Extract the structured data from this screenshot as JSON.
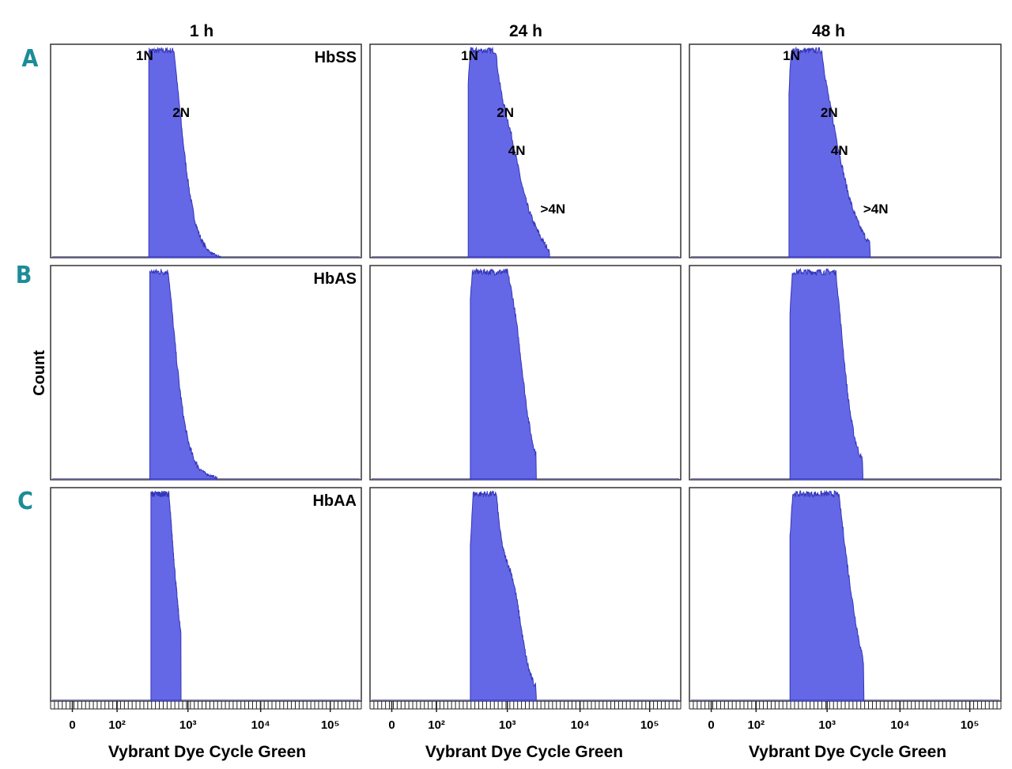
{
  "colors": {
    "fill": "#6467e6",
    "edge": "#3537b8",
    "frame": "#333333",
    "row_label": "#1c8c98"
  },
  "column_titles": [
    "1 h",
    "24 h",
    "48 h"
  ],
  "row_labels": [
    "A",
    "B",
    "C"
  ],
  "genotypes": [
    "HbSS",
    "HbAS",
    "HbAA"
  ],
  "y_axis_label": "Count",
  "x_axis_label": "Vybrant Dye Cycle Green",
  "x_tick_labels": [
    "0",
    "10²",
    "10³",
    "10⁴",
    "10⁵"
  ],
  "chart_data": [
    {
      "type": "area",
      "row": "A",
      "column": "1 h",
      "genotype": "HbSS",
      "x_scale": "logicle",
      "y_range": [
        0,
        1
      ],
      "peak_labels": [
        {
          "text": "1N",
          "x": 350
        },
        {
          "text": "2N",
          "x": 480
        }
      ],
      "peaks": [
        [
          350,
          1.0,
          0.055
        ],
        [
          480,
          0.42,
          0.05
        ],
        [
          640,
          0.05,
          0.06
        ]
      ],
      "baseline": 0.04,
      "x_range": [
        280,
        2800
      ]
    },
    {
      "type": "area",
      "row": "A",
      "column": "24 h",
      "genotype": "HbSS",
      "x_scale": "logicle",
      "y_range": [
        0,
        1
      ],
      "peak_labels": [
        {
          "text": "1N",
          "x": 420
        },
        {
          "text": "2N",
          "x": 560
        },
        {
          "text": "4N",
          "x": 1050
        },
        {
          "text": ">4N",
          "x": 2000
        }
      ],
      "peaks": [
        [
          300,
          0.18,
          0.03
        ],
        [
          420,
          1.0,
          0.03
        ],
        [
          560,
          0.5,
          0.04
        ],
        [
          1050,
          0.38,
          0.035
        ],
        [
          2000,
          0.12,
          0.04
        ]
      ],
      "baseline": 0.12,
      "x_range": [
        280,
        3800
      ]
    },
    {
      "type": "area",
      "row": "A",
      "column": "48 h",
      "genotype": "HbSS",
      "x_scale": "logicle",
      "y_range": [
        0,
        1
      ],
      "peak_labels": [
        {
          "text": "1N",
          "x": 450
        },
        {
          "text": "2N",
          "x": 640
        },
        {
          "text": "4N",
          "x": 1150
        },
        {
          "text": ">4N",
          "x": 2200
        }
      ],
      "peaks": [
        [
          380,
          0.32,
          0.035
        ],
        [
          450,
          1.0,
          0.03
        ],
        [
          640,
          0.62,
          0.04
        ],
        [
          1150,
          0.37,
          0.04
        ],
        [
          2200,
          0.12,
          0.05
        ]
      ],
      "baseline": 0.1,
      "x_range": [
        290,
        3900
      ]
    },
    {
      "type": "area",
      "row": "B",
      "column": "1 h",
      "genotype": "HbAS",
      "x_scale": "logicle",
      "y_range": [
        0,
        1
      ],
      "peak_labels": [],
      "peaks": [
        [
          360,
          1.0,
          0.045
        ],
        [
          420,
          0.25,
          0.05
        ],
        [
          550,
          0.06,
          0.08
        ]
      ],
      "baseline": 0.02,
      "x_range": [
        290,
        2500
      ]
    },
    {
      "type": "area",
      "row": "B",
      "column": "24 h",
      "genotype": "HbAS",
      "x_scale": "logicle",
      "y_range": [
        0,
        1
      ],
      "peak_labels": [],
      "peaks": [
        [
          400,
          0.76,
          0.035
        ],
        [
          560,
          0.98,
          0.035
        ],
        [
          1150,
          0.66,
          0.035
        ],
        [
          1500,
          0.08,
          0.08
        ]
      ],
      "baseline": 0.08,
      "x_range": [
        300,
        2500
      ]
    },
    {
      "type": "area",
      "row": "B",
      "column": "48 h",
      "genotype": "HbAS",
      "x_scale": "logicle",
      "y_range": [
        0,
        1
      ],
      "peak_labels": [],
      "peaks": [
        [
          420,
          0.93,
          0.035
        ],
        [
          620,
          0.98,
          0.035
        ],
        [
          1150,
          0.82,
          0.035
        ],
        [
          1800,
          0.12,
          0.06
        ]
      ],
      "baseline": 0.08,
      "x_range": [
        300,
        3100
      ]
    },
    {
      "type": "area",
      "row": "C",
      "column": "1 h",
      "genotype": "HbAA",
      "x_scale": "logicle",
      "y_range": [
        0,
        1
      ],
      "peak_labels": [],
      "peaks": [
        [
          380,
          1.0,
          0.04
        ],
        [
          430,
          0.3,
          0.04
        ],
        [
          560,
          0.05,
          0.05
        ]
      ],
      "baseline": 0.0,
      "x_range": [
        300,
        800
      ]
    },
    {
      "type": "area",
      "row": "C",
      "column": "24 h",
      "genotype": "HbAA",
      "x_scale": "logicle",
      "y_range": [
        0,
        1
      ],
      "peak_labels": [],
      "peaks": [
        [
          420,
          0.98,
          0.03
        ],
        [
          560,
          0.71,
          0.035
        ],
        [
          1150,
          0.43,
          0.03
        ],
        [
          1600,
          0.07,
          0.06
        ]
      ],
      "baseline": 0.06,
      "x_range": [
        300,
        2500
      ]
    },
    {
      "type": "area",
      "row": "C",
      "column": "48 h",
      "genotype": "HbAA",
      "x_scale": "logicle",
      "y_range": [
        0,
        1
      ],
      "peak_labels": [],
      "peaks": [
        [
          420,
          0.92,
          0.035
        ],
        [
          620,
          0.98,
          0.035
        ],
        [
          1150,
          0.82,
          0.035
        ],
        [
          2000,
          0.35,
          0.04
        ]
      ],
      "baseline": 0.08,
      "x_range": [
        300,
        3200
      ]
    }
  ]
}
